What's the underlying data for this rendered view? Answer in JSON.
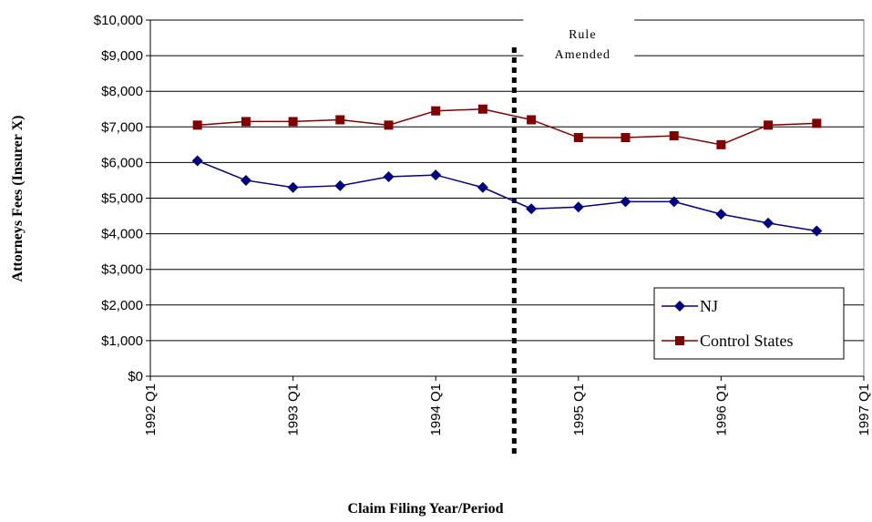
{
  "chart_data": {
    "type": "line",
    "xlabel": "Claim Filing Year/Period",
    "ylabel": "Attorneys Fees (Insurer X)",
    "x": [
      1992.33,
      1992.67,
      1993,
      1993.33,
      1993.67,
      1994,
      1994.33,
      1994.67,
      1995,
      1995.33,
      1995.67,
      1996,
      1996.33,
      1996.67
    ],
    "series": [
      {
        "name": "NJ",
        "color": "#000080",
        "marker": "diamond",
        "values": [
          6050,
          5500,
          5300,
          5350,
          5600,
          5650,
          5300,
          4700,
          4750,
          4900,
          4900,
          4550,
          4300,
          4080
        ]
      },
      {
        "name": "Control States",
        "color": "#800000",
        "marker": "square",
        "values": [
          7050,
          7150,
          7150,
          7200,
          7050,
          7450,
          7500,
          7200,
          6700,
          6700,
          6750,
          6500,
          7050,
          7100
        ]
      }
    ],
    "xlim": [
      1992,
      1997
    ],
    "xticks": [
      {
        "value": 1992,
        "label": "1992 Q1"
      },
      {
        "value": 1993,
        "label": "1993 Q1"
      },
      {
        "value": 1994,
        "label": "1994 Q1"
      },
      {
        "value": 1995,
        "label": "1995 Q1"
      },
      {
        "value": 1996,
        "label": "1996 Q1"
      },
      {
        "value": 1997,
        "label": "1997 Q1"
      }
    ],
    "ylim": [
      0,
      10000
    ],
    "yticks": [
      {
        "value": 0,
        "label": "$0"
      },
      {
        "value": 1000,
        "label": "$1,000"
      },
      {
        "value": 2000,
        "label": "$2,000"
      },
      {
        "value": 3000,
        "label": "$3,000"
      },
      {
        "value": 4000,
        "label": "$4,000"
      },
      {
        "value": 5000,
        "label": "$5,000"
      },
      {
        "value": 6000,
        "label": "$6,000"
      },
      {
        "value": 7000,
        "label": "$7,000"
      },
      {
        "value": 8000,
        "label": "$8,000"
      },
      {
        "value": 9000,
        "label": "$9,000"
      },
      {
        "value": 10000,
        "label": "$10,000"
      }
    ],
    "grid": true,
    "legend": "lower right",
    "annotation": {
      "lines": [
        "Rule",
        "Amended"
      ],
      "x": 1994.55
    }
  }
}
